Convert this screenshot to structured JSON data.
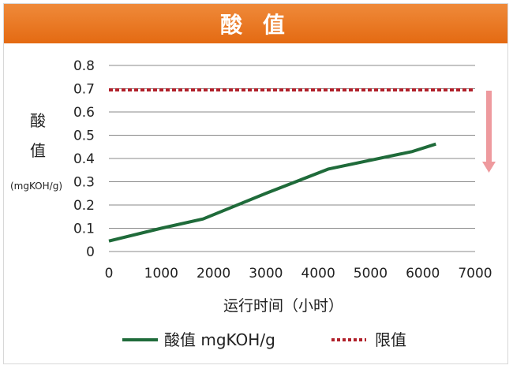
{
  "title": "酸 值",
  "chart_data": {
    "type": "line",
    "title": "酸 值",
    "ylabel_line1": "酸",
    "ylabel_line2": "值",
    "yunit": "(mgKOH/g)",
    "xlabel": "运行时间（小时）",
    "xlim": [
      0,
      7000
    ],
    "ylim": [
      0,
      0.8
    ],
    "xticks": [
      0,
      1000,
      2000,
      3000,
      4000,
      5000,
      6000,
      7000
    ],
    "yticks": [
      0,
      0.1,
      0.2,
      0.3,
      0.4,
      0.5,
      0.6,
      0.7,
      0.8
    ],
    "grid": true,
    "legend_position": "bottom",
    "series": [
      {
        "name": "酸值 mgKOH/g",
        "style": "solid",
        "color": "#1f6b3a",
        "x": [
          0,
          1000,
          1800,
          3000,
          4200,
          5800,
          6250
        ],
        "y": [
          0.045,
          0.1,
          0.14,
          0.25,
          0.355,
          0.43,
          0.462
        ]
      },
      {
        "name": "限值",
        "style": "dotted",
        "color": "#b0202a",
        "x": [
          0,
          7000
        ],
        "y": [
          0.695,
          0.695
        ]
      }
    ],
    "trend_arrow_color": "#ee9a9e"
  }
}
